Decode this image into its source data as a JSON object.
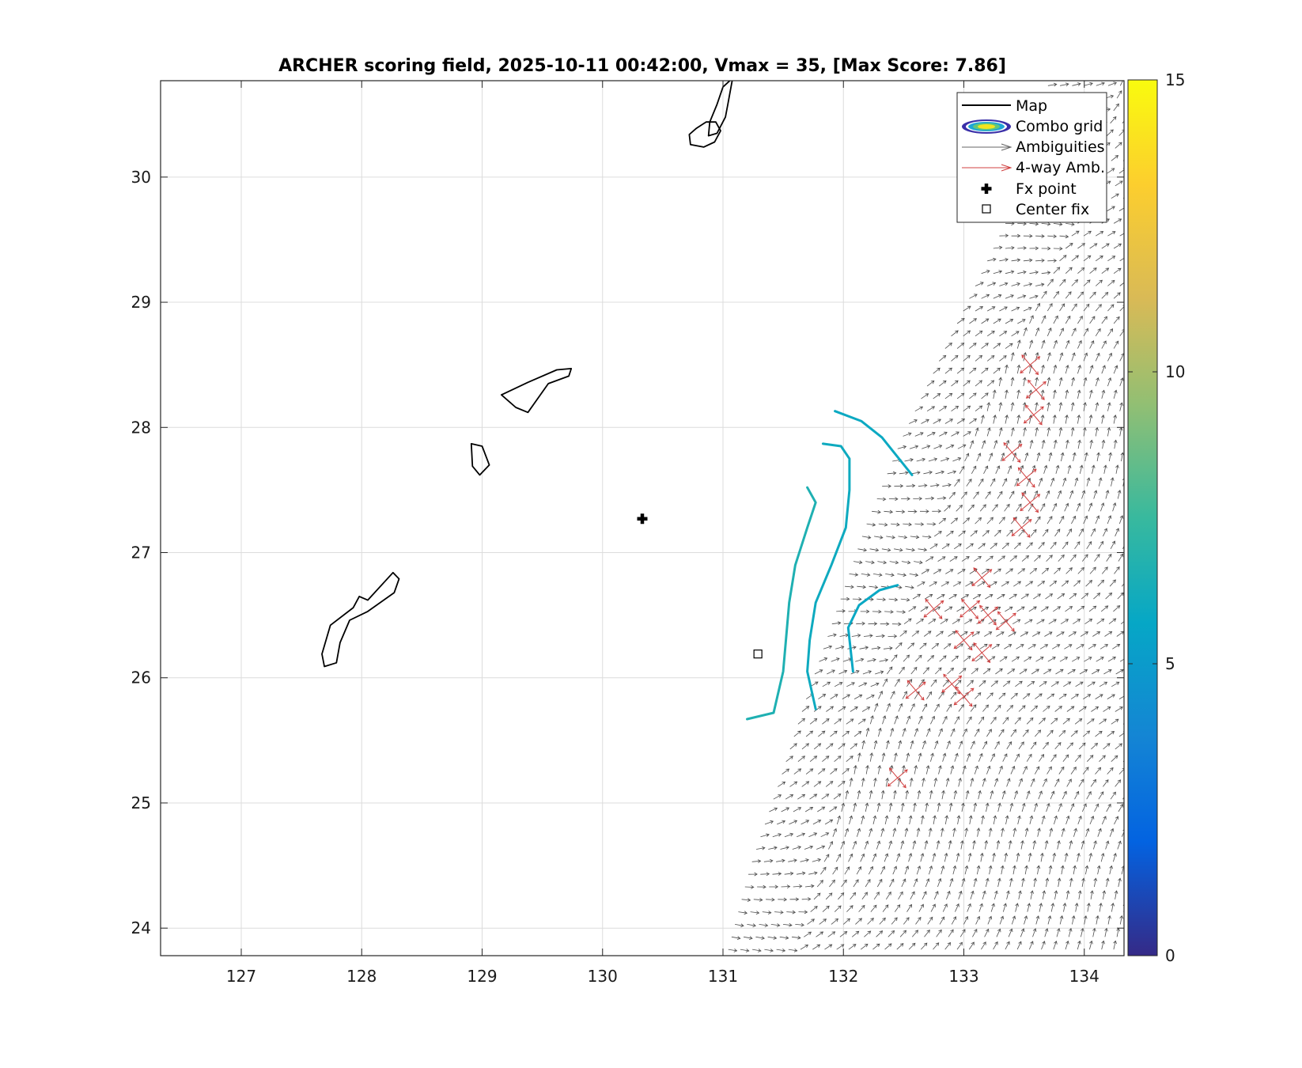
{
  "chart_data": {
    "type": "scatter",
    "title": "ARCHER scoring field, 2025-10-11 00:42:00, Vmax = 35, [Max Score: 7.86]",
    "xlabel": "",
    "ylabel": "",
    "xlim": [
      126.33,
      134.33
    ],
    "ylim": [
      23.78,
      30.77
    ],
    "x_ticks": [
      "127",
      "128",
      "129",
      "130",
      "131",
      "132",
      "133",
      "134"
    ],
    "y_ticks": [
      "24",
      "25",
      "26",
      "27",
      "28",
      "29",
      "30"
    ],
    "grid": true,
    "legend_position": "top-right",
    "legend": [
      {
        "label": "Map",
        "symbol": "line",
        "color": "#000000"
      },
      {
        "label": "Combo grid",
        "symbol": "contour",
        "color": "#3a2fa8"
      },
      {
        "label": "Ambiguities",
        "symbol": "arrow",
        "color": "#666666"
      },
      {
        "label": "4-way Amb.",
        "symbol": "arrow",
        "color": "#d04040"
      },
      {
        "label": "Fx point",
        "symbol": "plus",
        "color": "#000000"
      },
      {
        "label": "Center fix",
        "symbol": "square",
        "color": "#000000"
      }
    ],
    "fx_point": {
      "x": 130.33,
      "y": 27.27
    },
    "center_fix": {
      "x": 131.29,
      "y": 26.19
    },
    "max_score": 7.86,
    "colorbar": {
      "ticks": [
        "0",
        "5",
        "10",
        "15"
      ],
      "range": [
        0,
        15
      ],
      "colormap": "parula"
    },
    "coastlines": [
      [
        [
          130.78,
          30.39
        ],
        [
          130.86,
          30.44
        ],
        [
          130.94,
          30.44
        ],
        [
          130.98,
          30.37
        ],
        [
          130.93,
          30.28
        ],
        [
          130.84,
          30.24
        ],
        [
          130.73,
          30.26
        ],
        [
          130.72,
          30.34
        ],
        [
          130.78,
          30.39
        ]
      ],
      [
        [
          131.08,
          30.79
        ],
        [
          131.04,
          30.58
        ],
        [
          131.02,
          30.48
        ],
        [
          130.95,
          30.35
        ],
        [
          130.88,
          30.33
        ],
        [
          130.89,
          30.44
        ],
        [
          130.95,
          30.58
        ],
        [
          131.0,
          30.72
        ],
        [
          131.08,
          30.79
        ]
      ],
      [
        [
          129.16,
          28.26
        ],
        [
          129.38,
          28.36
        ],
        [
          129.62,
          28.46
        ],
        [
          129.74,
          28.47
        ],
        [
          129.72,
          28.41
        ],
        [
          129.55,
          28.35
        ],
        [
          129.38,
          28.12
        ],
        [
          129.28,
          28.16
        ],
        [
          129.16,
          28.26
        ]
      ],
      [
        [
          128.91,
          27.87
        ],
        [
          129.0,
          27.85
        ],
        [
          129.06,
          27.7
        ],
        [
          128.98,
          27.62
        ],
        [
          128.92,
          27.69
        ],
        [
          128.91,
          27.87
        ]
      ],
      [
        [
          128.31,
          26.79
        ],
        [
          128.27,
          26.68
        ],
        [
          128.05,
          26.53
        ],
        [
          127.9,
          26.46
        ],
        [
          127.82,
          26.28
        ],
        [
          127.79,
          26.12
        ],
        [
          127.69,
          26.09
        ],
        [
          127.67,
          26.19
        ],
        [
          127.74,
          26.42
        ],
        [
          127.93,
          26.56
        ],
        [
          127.98,
          26.65
        ],
        [
          128.05,
          26.62
        ],
        [
          128.26,
          26.84
        ],
        [
          128.31,
          26.79
        ]
      ]
    ],
    "score_contours": [
      {
        "level": 6.6,
        "points": [
          [
            131.2,
            25.67
          ],
          [
            131.42,
            25.72
          ],
          [
            131.5,
            26.05
          ],
          [
            131.55,
            26.6
          ],
          [
            131.6,
            26.9
          ],
          [
            131.7,
            27.2
          ],
          [
            131.77,
            27.4
          ],
          [
            131.7,
            27.52
          ]
        ]
      },
      {
        "level": 6.0,
        "points": [
          [
            131.77,
            25.75
          ],
          [
            131.7,
            26.05
          ],
          [
            131.72,
            26.3
          ],
          [
            131.77,
            26.6
          ],
          [
            131.9,
            26.9
          ],
          [
            132.02,
            27.2
          ],
          [
            132.05,
            27.5
          ],
          [
            132.05,
            27.75
          ],
          [
            131.98,
            27.85
          ],
          [
            131.83,
            27.87
          ]
        ]
      },
      {
        "level": 5.8,
        "points": [
          [
            132.08,
            26.05
          ],
          [
            132.04,
            26.4
          ],
          [
            132.13,
            26.58
          ],
          [
            132.3,
            26.7
          ],
          [
            132.45,
            26.74
          ]
        ]
      },
      {
        "level": 5.9,
        "points": [
          [
            131.93,
            28.13
          ],
          [
            132.15,
            28.05
          ],
          [
            132.32,
            27.92
          ],
          [
            132.42,
            27.8
          ],
          [
            132.57,
            27.62
          ]
        ]
      }
    ],
    "swath_edges": {
      "left": [
        [
          131.0,
          23.78
        ],
        [
          131.2,
          24.5
        ],
        [
          131.45,
          25.2
        ],
        [
          131.65,
          25.8
        ],
        [
          131.9,
          26.5
        ],
        [
          132.15,
          27.2
        ],
        [
          132.45,
          27.9
        ],
        [
          132.75,
          28.5
        ],
        [
          133.05,
          29.1
        ],
        [
          133.35,
          29.7
        ],
        [
          133.55,
          30.3
        ],
        [
          133.68,
          30.77
        ]
      ],
      "right_x": 134.33
    },
    "four_way_ambiguities": [
      [
        133.55,
        28.5
      ],
      [
        133.6,
        28.3
      ],
      [
        133.58,
        28.1
      ],
      [
        133.4,
        27.8
      ],
      [
        133.52,
        27.6
      ],
      [
        133.55,
        27.4
      ],
      [
        133.48,
        27.2
      ],
      [
        133.15,
        26.8
      ],
      [
        133.05,
        26.55
      ],
      [
        133.2,
        26.5
      ],
      [
        133.35,
        26.45
      ],
      [
        133.0,
        26.3
      ],
      [
        133.15,
        26.2
      ],
      [
        132.75,
        26.55
      ],
      [
        132.9,
        25.95
      ],
      [
        133.0,
        25.85
      ],
      [
        132.6,
        25.9
      ],
      [
        132.45,
        25.2
      ]
    ],
    "wind_field_note": "Ambiguity vectors fill the scatterometer swath; rendered as a regular arrow lattice."
  }
}
